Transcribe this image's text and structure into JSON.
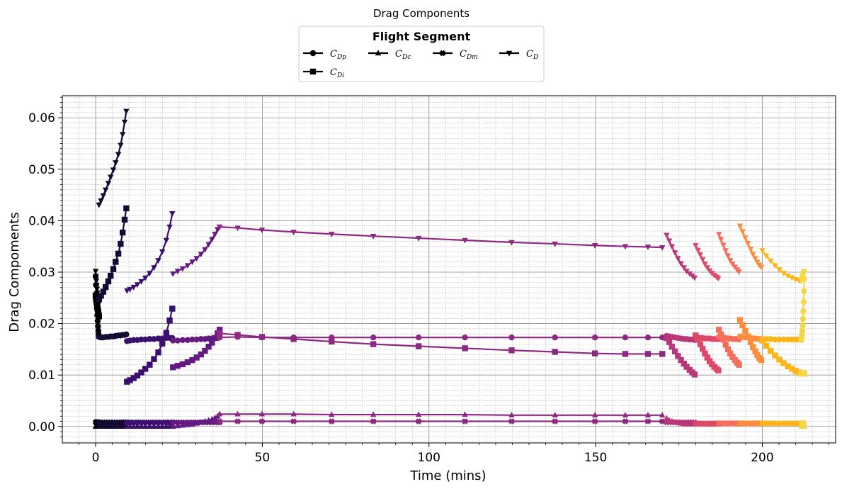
{
  "chart_data": {
    "type": "line",
    "title": "Drag Components",
    "xlabel": "Time (mins)",
    "ylabel": "Drag Compoments",
    "xlim": [
      -10,
      222
    ],
    "ylim": [
      -0.0032,
      0.0643
    ],
    "xticks": [
      0,
      50,
      100,
      150,
      200
    ],
    "xtick_labels": [
      "0",
      "50",
      "100",
      "150",
      "200"
    ],
    "yticks": [
      0.0,
      0.01,
      0.02,
      0.03,
      0.04,
      0.05,
      0.06
    ],
    "ytick_labels": [
      "0.00",
      "0.01",
      "0.02",
      "0.03",
      "0.04",
      "0.05",
      "0.06"
    ],
    "grid": true,
    "legend": {
      "title": "Flight Segment",
      "placement": "top-center",
      "entries": [
        {
          "label": "C",
          "sub": "Dp",
          "marker": "circle"
        },
        {
          "label": "C",
          "sub": "Dc",
          "marker": "triangle-up"
        },
        {
          "label": "C",
          "sub": "Dm",
          "marker": "plus-filled"
        },
        {
          "label": "C",
          "sub": "D",
          "marker": "triangle-down"
        },
        {
          "label": "C",
          "sub": "Di",
          "marker": "square"
        }
      ]
    },
    "segments": [
      {
        "color": "#000004",
        "time": [
          0,
          0.1,
          0.2,
          0.3,
          0.4,
          0.5,
          0.6,
          0.7,
          0.8,
          0.9,
          1.0
        ],
        "CDp": [
          0.0292,
          0.0275,
          0.0258,
          0.0243,
          0.0229,
          0.0216,
          0.0205,
          0.0195,
          0.0186,
          0.0179,
          0.0174
        ],
        "CDi": [
          0.0254,
          0.0249,
          0.0245,
          0.0241,
          0.0237,
          0.0233,
          0.0229,
          0.0225,
          0.0221,
          0.0217,
          0.0214
        ],
        "CDc": [
          0.0,
          0.0,
          0.0,
          0.0,
          0.0,
          0.0,
          0.0,
          0.0,
          0.0,
          0.0,
          0.0
        ],
        "CDm": [
          0.0008,
          0.0008,
          0.0008,
          0.0008,
          0.0008,
          0.0008,
          0.0008,
          0.0008,
          0.0008,
          0.0008,
          0.0008
        ],
        "CD": [
          0.0302,
          0.0292,
          0.0283,
          0.0275,
          0.0267,
          0.026,
          0.0255,
          0.025,
          0.0246,
          0.0243,
          0.024
        ]
      },
      {
        "color": "#140b35",
        "time": [
          1.0,
          1.6,
          2.3,
          3.0,
          3.8,
          4.5,
          5.3,
          6.0,
          6.8,
          7.5,
          8.1,
          8.7,
          9.2
        ],
        "CDp": [
          0.0174,
          0.0173,
          0.0173,
          0.0174,
          0.0174,
          0.0175,
          0.0175,
          0.0176,
          0.0177,
          0.0177,
          0.0178,
          0.0178,
          0.0179
        ],
        "CDi": [
          0.0247,
          0.0254,
          0.0262,
          0.0271,
          0.0282,
          0.0293,
          0.0306,
          0.032,
          0.0336,
          0.0355,
          0.0377,
          0.0402,
          0.0424
        ],
        "CDc": [
          0.0,
          0.0,
          0.0,
          0.0,
          0.0,
          0.0,
          0.0,
          0.0,
          0.0,
          0.0,
          0.0,
          0.0,
          0.0
        ],
        "CDm": [
          0.0008,
          0.0008,
          0.0008,
          0.0008,
          0.0008,
          0.0008,
          0.0008,
          0.0008,
          0.0008,
          0.0008,
          0.0008,
          0.0008,
          0.0008
        ],
        "CD": [
          0.0431,
          0.0439,
          0.0449,
          0.046,
          0.0473,
          0.0485,
          0.0499,
          0.0513,
          0.0529,
          0.0547,
          0.0568,
          0.0592,
          0.0613
        ]
      },
      {
        "color": "#3b0f70",
        "time": [
          9.4,
          10.3,
          11.4,
          12.5,
          13.7,
          14.9,
          16.2,
          17.5,
          18.8,
          20.0,
          21.2,
          22.2,
          23.0
        ],
        "CDp": [
          0.0166,
          0.0167,
          0.0168,
          0.0168,
          0.0169,
          0.0169,
          0.017,
          0.017,
          0.0171,
          0.0171,
          0.0172,
          0.0172,
          0.0172
        ],
        "CDi": [
          0.0087,
          0.009,
          0.0094,
          0.0099,
          0.0105,
          0.0112,
          0.012,
          0.0131,
          0.0144,
          0.0161,
          0.0182,
          0.0206,
          0.0229
        ],
        "CDc": [
          0.0,
          0.0,
          0.0,
          0.0,
          0.0,
          0.0,
          0.0,
          0.0,
          0.0,
          0.0,
          0.0,
          0.0,
          0.0
        ],
        "CDm": [
          0.0008,
          0.0008,
          0.0008,
          0.0008,
          0.0008,
          0.0008,
          0.0008,
          0.0008,
          0.0008,
          0.0008,
          0.0008,
          0.0008,
          0.0008
        ],
        "CD": [
          0.0264,
          0.0267,
          0.0271,
          0.0276,
          0.0282,
          0.0289,
          0.0298,
          0.0309,
          0.0323,
          0.034,
          0.0362,
          0.0388,
          0.0414
        ]
      },
      {
        "color": "#641a80",
        "time": [
          23.2,
          24.6,
          26.1,
          27.6,
          29.0,
          30.3,
          31.6,
          32.8,
          33.9,
          34.9,
          35.8,
          36.6,
          37.2
        ],
        "CDp": [
          0.0167,
          0.0167,
          0.0168,
          0.0168,
          0.0169,
          0.0169,
          0.017,
          0.017,
          0.0171,
          0.0171,
          0.0172,
          0.0172,
          0.0173
        ],
        "CDi": [
          0.0115,
          0.0118,
          0.0121,
          0.0125,
          0.0129,
          0.0134,
          0.014,
          0.0147,
          0.0155,
          0.0163,
          0.0172,
          0.0181,
          0.0188
        ],
        "CDc": [
          0.0,
          0.0001,
          0.0002,
          0.0003,
          0.0004,
          0.0006,
          0.0008,
          0.001,
          0.0012,
          0.0014,
          0.0017,
          0.002,
          0.0024
        ],
        "CDm": [
          0.0008,
          0.0008,
          0.0008,
          0.0008,
          0.0008,
          0.0008,
          0.0008,
          0.0008,
          0.0008,
          0.0008,
          0.0008,
          0.0008,
          0.0008
        ],
        "CD": [
          0.0297,
          0.0302,
          0.0307,
          0.0313,
          0.032,
          0.0327,
          0.0335,
          0.0344,
          0.0354,
          0.0364,
          0.0374,
          0.0383,
          0.0388
        ]
      },
      {
        "color": "#8c2981",
        "time": [
          37.2,
          42.6,
          49.9,
          59.4,
          70.8,
          83.3,
          96.9,
          110.8,
          124.8,
          137.8,
          149.8,
          158.9,
          165.7,
          170.0
        ],
        "CDp": [
          0.0173,
          0.0174,
          0.0173,
          0.0173,
          0.0173,
          0.0173,
          0.0173,
          0.0173,
          0.0173,
          0.0173,
          0.0173,
          0.0173,
          0.0173,
          0.0173
        ],
        "CDi": [
          0.0181,
          0.0178,
          0.0174,
          0.017,
          0.0165,
          0.016,
          0.0156,
          0.0152,
          0.0148,
          0.0145,
          0.0142,
          0.0141,
          0.0141,
          0.0141
        ],
        "CDc": [
          0.0024,
          0.0024,
          0.0024,
          0.0024,
          0.0023,
          0.0023,
          0.0023,
          0.0023,
          0.0022,
          0.0022,
          0.0022,
          0.0022,
          0.0022,
          0.0022
        ],
        "CDm": [
          0.001,
          0.001,
          0.001,
          0.001,
          0.001,
          0.001,
          0.001,
          0.001,
          0.001,
          0.001,
          0.001,
          0.001,
          0.001,
          0.001
        ],
        "CD": [
          0.0388,
          0.0386,
          0.0382,
          0.0378,
          0.0374,
          0.037,
          0.0366,
          0.0362,
          0.0358,
          0.0355,
          0.0352,
          0.035,
          0.0349,
          0.0348
        ]
      },
      {
        "color": "#b73779",
        "time": [
          171.3,
          172.1,
          172.9,
          173.8,
          174.7,
          175.6,
          176.5,
          177.3,
          178.2,
          179.0,
          179.7
        ],
        "CDp": [
          0.0176,
          0.0175,
          0.0174,
          0.0173,
          0.0172,
          0.0171,
          0.017,
          0.017,
          0.0169,
          0.0169,
          0.0168
        ],
        "CDi": [
          0.0172,
          0.0164,
          0.0155,
          0.0146,
          0.0137,
          0.0129,
          0.0122,
          0.0116,
          0.011,
          0.0105,
          0.0101
        ],
        "CDc": [
          0.0016,
          0.0012,
          0.001,
          0.0008,
          0.0007,
          0.0006,
          0.0005,
          0.0005,
          0.0005,
          0.0005,
          0.0005
        ],
        "CDm": [
          0.0008,
          0.0008,
          0.0008,
          0.0008,
          0.0008,
          0.0008,
          0.0008,
          0.0008,
          0.0008,
          0.0008,
          0.0008
        ],
        "CD": [
          0.0372,
          0.0361,
          0.035,
          0.0338,
          0.0327,
          0.0317,
          0.0309,
          0.0302,
          0.0297,
          0.0293,
          0.0289
        ]
      },
      {
        "color": "#de4968",
        "time": [
          180.0,
          180.7,
          181.4,
          182.1,
          182.8,
          183.5,
          184.2,
          184.9,
          185.6,
          186.3,
          186.8
        ],
        "CDp": [
          0.0173,
          0.0173,
          0.0172,
          0.0172,
          0.0171,
          0.0171,
          0.0171,
          0.017,
          0.017,
          0.017,
          0.017
        ],
        "CDi": [
          0.0177,
          0.0169,
          0.016,
          0.0151,
          0.0142,
          0.0134,
          0.0127,
          0.0121,
          0.0116,
          0.0112,
          0.0109
        ],
        "CDc": [
          0.0006,
          0.0006,
          0.0005,
          0.0005,
          0.0005,
          0.0005,
          0.0005,
          0.0005,
          0.0005,
          0.0005,
          0.0005
        ],
        "CDm": [
          0.0006,
          0.0006,
          0.0006,
          0.0006,
          0.0006,
          0.0006,
          0.0006,
          0.0006,
          0.0006,
          0.0006,
          0.0006
        ],
        "CD": [
          0.0352,
          0.0343,
          0.0334,
          0.0325,
          0.0316,
          0.0309,
          0.0303,
          0.0298,
          0.0294,
          0.0291,
          0.0288
        ]
      },
      {
        "color": "#f66e5b",
        "time": [
          187.0,
          187.6,
          188.3,
          189.0,
          189.7,
          190.4,
          191.1,
          191.8,
          192.5,
          193.0
        ],
        "CDp": [
          0.0174,
          0.0174,
          0.0173,
          0.0172,
          0.0171,
          0.0171,
          0.017,
          0.017,
          0.017,
          0.0169
        ],
        "CDi": [
          0.0188,
          0.0179,
          0.0169,
          0.0159,
          0.015,
          0.0142,
          0.0135,
          0.0129,
          0.0124,
          0.012
        ],
        "CDc": [
          0.0006,
          0.0006,
          0.0006,
          0.0006,
          0.0006,
          0.0006,
          0.0006,
          0.0006,
          0.0006,
          0.0006
        ],
        "CDm": [
          0.0006,
          0.0006,
          0.0006,
          0.0006,
          0.0006,
          0.0006,
          0.0006,
          0.0006,
          0.0006,
          0.0006
        ],
        "CD": [
          0.0374,
          0.0364,
          0.0353,
          0.0342,
          0.0332,
          0.0323,
          0.0316,
          0.031,
          0.0305,
          0.0301
        ]
      },
      {
        "color": "#fb8d3d",
        "time": [
          193.3,
          194.1,
          194.9,
          195.7,
          196.5,
          197.2,
          197.9,
          198.5,
          199.1,
          199.7
        ],
        "CDp": [
          0.0175,
          0.0174,
          0.0173,
          0.0173,
          0.0172,
          0.0171,
          0.0171,
          0.017,
          0.017,
          0.017
        ],
        "CDi": [
          0.0207,
          0.0197,
          0.0186,
          0.0175,
          0.0164,
          0.0154,
          0.0146,
          0.0139,
          0.0133,
          0.0129
        ],
        "CDc": [
          0.0006,
          0.0006,
          0.0006,
          0.0006,
          0.0006,
          0.0006,
          0.0006,
          0.0006,
          0.0006,
          0.0006
        ],
        "CDm": [
          0.0006,
          0.0006,
          0.0006,
          0.0006,
          0.0006,
          0.0006,
          0.0006,
          0.0006,
          0.0006,
          0.0006
        ],
        "CD": [
          0.039,
          0.0379,
          0.0367,
          0.0356,
          0.0345,
          0.0335,
          0.0327,
          0.032,
          0.0314,
          0.031
        ]
      },
      {
        "color": "#fcb519",
        "time": [
          200.0,
          201.2,
          202.5,
          203.8,
          205.1,
          206.4,
          207.7,
          208.9,
          210.0,
          211.0,
          211.6
        ],
        "CDp": [
          0.017,
          0.017,
          0.017,
          0.0169,
          0.0169,
          0.0169,
          0.0169,
          0.0169,
          0.0169,
          0.0169,
          0.0169
        ],
        "CDi": [
          0.0167,
          0.0157,
          0.0147,
          0.0138,
          0.013,
          0.0123,
          0.0117,
          0.0112,
          0.0108,
          0.0105,
          0.0103
        ],
        "CDc": [
          0.0006,
          0.0006,
          0.0006,
          0.0006,
          0.0006,
          0.0006,
          0.0006,
          0.0006,
          0.0006,
          0.0006,
          0.0006
        ],
        "CDm": [
          0.0006,
          0.0006,
          0.0006,
          0.0006,
          0.0006,
          0.0006,
          0.0006,
          0.0006,
          0.0006,
          0.0006,
          0.0006
        ],
        "CD": [
          0.0342,
          0.0332,
          0.0322,
          0.0313,
          0.0305,
          0.0298,
          0.0293,
          0.0289,
          0.0286,
          0.0284,
          0.0283
        ]
      },
      {
        "color": "#f6d746",
        "time": [
          211.7,
          211.8,
          211.9,
          212.0,
          212.1,
          212.2,
          212.3,
          212.4,
          212.5,
          212.6
        ],
        "CDp": [
          0.0168,
          0.0172,
          0.0178,
          0.0186,
          0.0196,
          0.0209,
          0.0224,
          0.0242,
          0.0263,
          0.0287
        ],
        "CDi": [
          0.0103,
          0.0103,
          0.0103,
          0.0103,
          0.0103,
          0.0103,
          0.0103,
          0.0103,
          0.0103,
          0.0103
        ],
        "CDc": [
          0.0,
          0.0,
          0.0,
          0.0,
          0.0,
          0.0,
          0.0,
          0.0,
          0.0,
          0.0
        ],
        "CDm": [
          0.0006,
          0.0006,
          0.0006,
          0.0006,
          0.0006,
          0.0006,
          0.0006,
          0.0006,
          0.0006,
          0.0006
        ],
        "CD": [
          0.0283,
          0.0285,
          0.0287,
          0.029,
          0.0292,
          0.0294,
          0.0296,
          0.0298,
          0.03,
          0.0302
        ]
      }
    ]
  }
}
